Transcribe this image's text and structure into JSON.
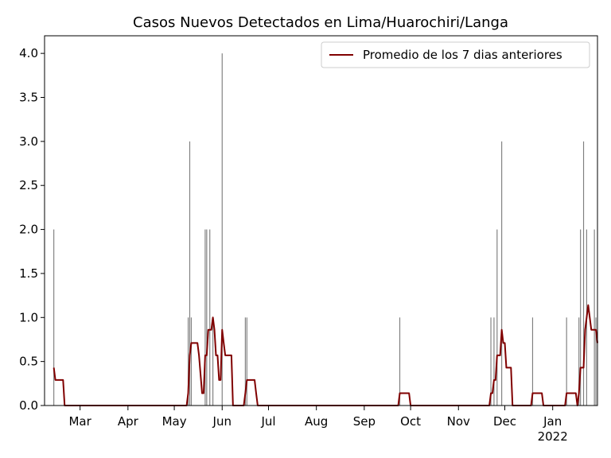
{
  "chart_data": {
    "type": "bar+line",
    "title": "Casos Nuevos Detectados en Lima/Huarochiri/Langa",
    "xlim": [
      0,
      358
    ],
    "xticks": [
      {
        "value": 23,
        "label": "Mar"
      },
      {
        "value": 54,
        "label": "Apr"
      },
      {
        "value": 84,
        "label": "May"
      },
      {
        "value": 115,
        "label": "Jun"
      },
      {
        "value": 145,
        "label": "Jul"
      },
      {
        "value": 176,
        "label": "Aug"
      },
      {
        "value": 207,
        "label": "Sep"
      },
      {
        "value": 237,
        "label": "Oct"
      },
      {
        "value": 268,
        "label": "Nov"
      },
      {
        "value": 298,
        "label": "Dec"
      },
      {
        "value": 329,
        "label": "Jan\n2022"
      }
    ],
    "ylim": [
      0,
      4.2
    ],
    "yticks": [
      {
        "value": 0,
        "label": "0.0"
      },
      {
        "value": 0.5,
        "label": "0.5"
      },
      {
        "value": 1,
        "label": "1.0"
      },
      {
        "value": 1.5,
        "label": "1.5"
      },
      {
        "value": 2,
        "label": "2.0"
      },
      {
        "value": 2.5,
        "label": "2.5"
      },
      {
        "value": 3,
        "label": "3.0"
      },
      {
        "value": 3.5,
        "label": "3.5"
      },
      {
        "value": 4,
        "label": "4.0"
      }
    ],
    "legend": "upper right",
    "bars": {
      "color": "#808080",
      "x": [
        6,
        93,
        94,
        95,
        104,
        105,
        107,
        109,
        115,
        130,
        131,
        230,
        289,
        291,
        293,
        296,
        316,
        338,
        346,
        347,
        349,
        351,
        356,
        357
      ],
      "values": [
        2,
        1,
        3,
        1,
        2,
        2,
        2,
        1,
        4,
        1,
        1,
        1,
        1,
        1,
        2,
        3,
        1,
        1,
        1,
        2,
        3,
        2,
        2,
        1
      ]
    },
    "series": [
      {
        "name": "Promedio de los 7 dias anteriores",
        "color": "#800000",
        "x": [
          6,
          7,
          12,
          13,
          92,
          93,
          94,
          95,
          99,
          100,
          102,
          103,
          104,
          105,
          106,
          108,
          109,
          110,
          111,
          112,
          113,
          114,
          115,
          116,
          117,
          121,
          122,
          129,
          130,
          131,
          136,
          137,
          138,
          229,
          230,
          236,
          237,
          288,
          289,
          290,
          291,
          292,
          293,
          295,
          296,
          297,
          298,
          299,
          302,
          303,
          315,
          316,
          322,
          323,
          337,
          338,
          344,
          345,
          346,
          347,
          349,
          350,
          351,
          352,
          353,
          354,
          357,
          358
        ],
        "values": [
          0.43,
          0.29,
          0.29,
          0,
          0,
          0.14,
          0.57,
          0.71,
          0.71,
          0.57,
          0.14,
          0.14,
          0.57,
          0.57,
          0.86,
          0.86,
          1.0,
          0.86,
          0.57,
          0.57,
          0.29,
          0.29,
          0.86,
          0.71,
          0.57,
          0.57,
          0,
          0,
          0.14,
          0.29,
          0.29,
          0.14,
          0,
          0,
          0.14,
          0.14,
          0,
          0,
          0.14,
          0.14,
          0.29,
          0.29,
          0.57,
          0.57,
          0.86,
          0.71,
          0.71,
          0.43,
          0.43,
          0,
          0,
          0.14,
          0.14,
          0,
          0,
          0.14,
          0.14,
          0,
          0.14,
          0.43,
          0.43,
          0.86,
          1.0,
          1.14,
          1.0,
          0.86,
          0.86,
          0.71
        ]
      }
    ]
  }
}
